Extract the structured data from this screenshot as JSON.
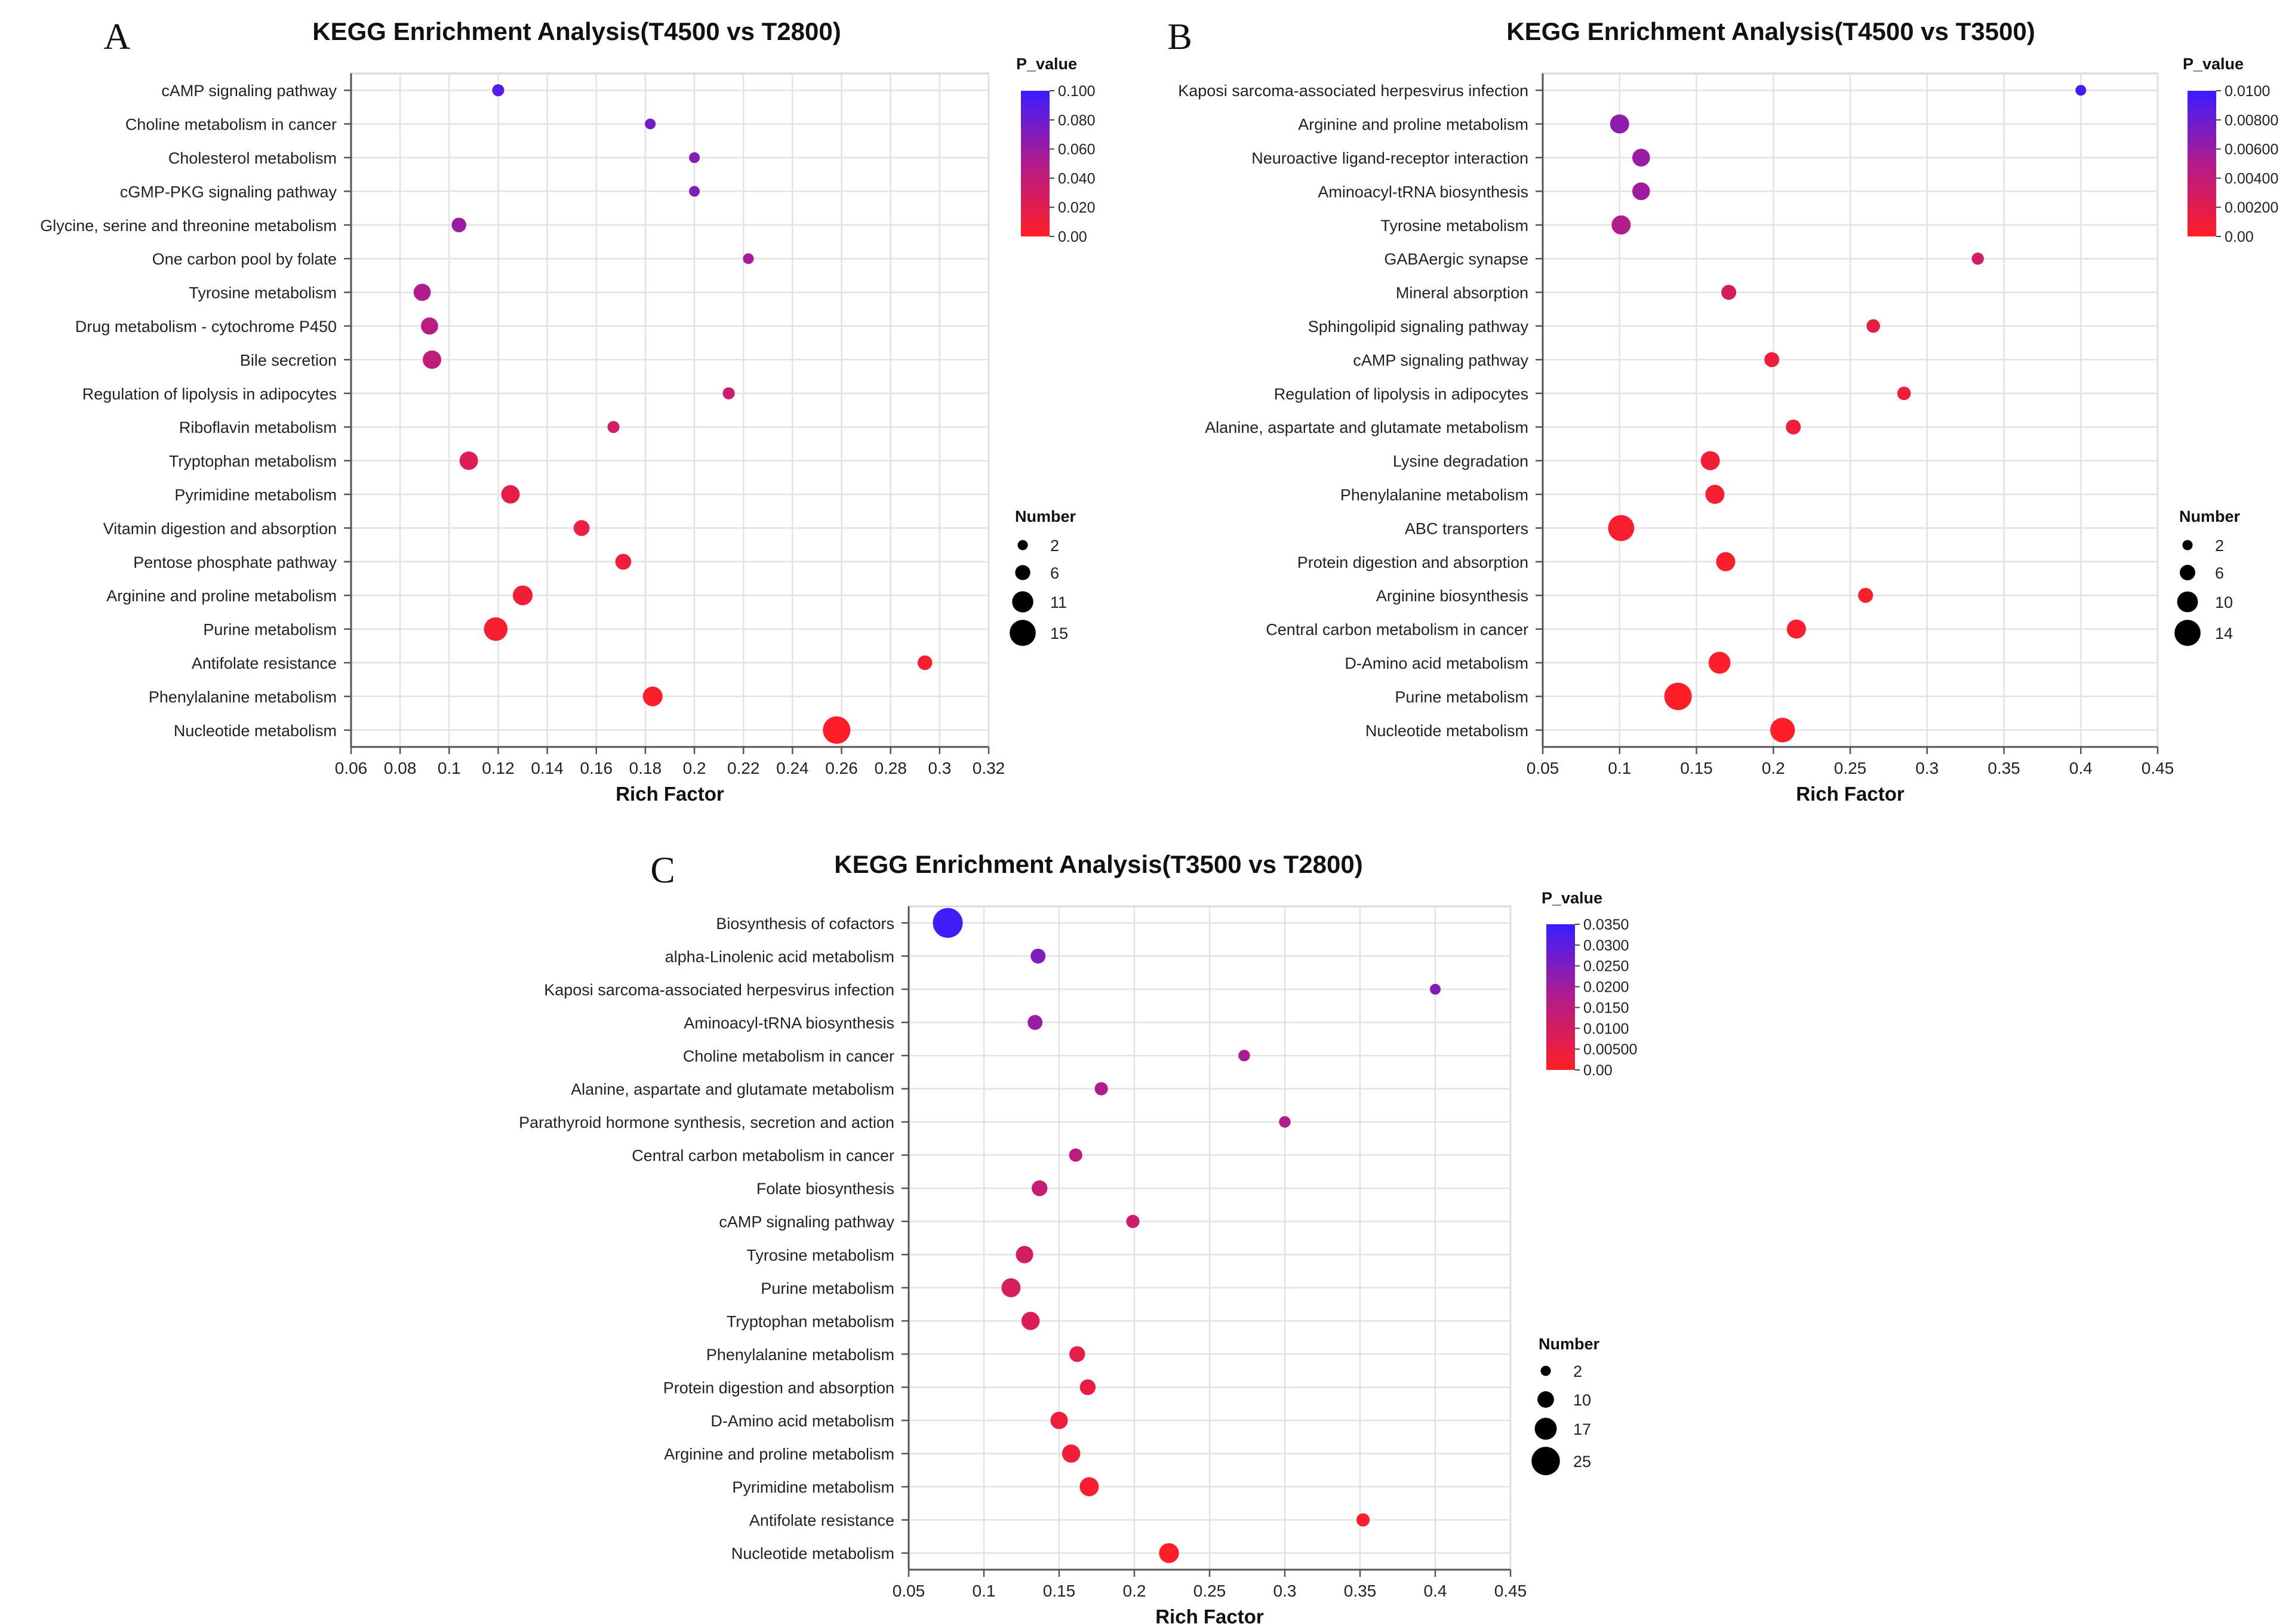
{
  "chart_data": [
    {
      "type": "scatter",
      "panel": "A",
      "title": "KEGG Enrichment Analysis(T4500 vs T2800)",
      "xlabel": "Rich Factor",
      "ylabel": "",
      "xlim": [
        0.06,
        0.32
      ],
      "xticks": [
        0.06,
        0.08,
        0.1,
        0.12,
        0.14,
        0.16,
        0.18,
        0.2,
        0.22,
        0.24,
        0.26,
        0.28,
        0.3,
        0.32
      ],
      "xtick_labels": [
        "0.06",
        "0.08",
        "0.1",
        "0.12",
        "0.14",
        "0.16",
        "0.18",
        "0.2",
        "0.22",
        "0.24",
        "0.26",
        "0.28",
        "0.3",
        "0.32"
      ],
      "grid": true,
      "color_legend": {
        "title": "P_value",
        "min": 0,
        "max": 0.1,
        "ticks": [
          "0.100",
          "0.080",
          "0.060",
          "0.040",
          "0.020",
          "0.00"
        ]
      },
      "size_legend": {
        "title": "Number",
        "values": [
          2,
          6,
          11,
          15
        ],
        "labels": [
          "2",
          "6",
          "11",
          "15"
        ]
      },
      "size_range": [
        2,
        15
      ],
      "points": [
        {
          "pathway": "cAMP signaling pathway",
          "rich_factor": 0.12,
          "number": 3,
          "p_value": 0.09
        },
        {
          "pathway": "Choline metabolism in cancer",
          "rich_factor": 0.182,
          "number": 2,
          "p_value": 0.075
        },
        {
          "pathway": "Cholesterol metabolism",
          "rich_factor": 0.2,
          "number": 2,
          "p_value": 0.07
        },
        {
          "pathway": "cGMP-PKG signaling pathway",
          "rich_factor": 0.2,
          "number": 2,
          "p_value": 0.07
        },
        {
          "pathway": "Glycine, serine and threonine metabolism",
          "rich_factor": 0.104,
          "number": 5,
          "p_value": 0.06
        },
        {
          "pathway": "One carbon pool by folate",
          "rich_factor": 0.222,
          "number": 2,
          "p_value": 0.055
        },
        {
          "pathway": "Tyrosine metabolism",
          "rich_factor": 0.089,
          "number": 7,
          "p_value": 0.05
        },
        {
          "pathway": "Drug metabolism - cytochrome P450",
          "rich_factor": 0.092,
          "number": 7,
          "p_value": 0.045
        },
        {
          "pathway": "Bile secretion",
          "rich_factor": 0.093,
          "number": 8,
          "p_value": 0.04
        },
        {
          "pathway": "Regulation of lipolysis in adipocytes",
          "rich_factor": 0.214,
          "number": 3,
          "p_value": 0.035
        },
        {
          "pathway": "Riboflavin metabolism",
          "rich_factor": 0.167,
          "number": 3,
          "p_value": 0.03
        },
        {
          "pathway": "Tryptophan metabolism",
          "rich_factor": 0.108,
          "number": 8,
          "p_value": 0.022
        },
        {
          "pathway": "Pyrimidine metabolism",
          "rich_factor": 0.125,
          "number": 8,
          "p_value": 0.015
        },
        {
          "pathway": "Vitamin digestion and absorption",
          "rich_factor": 0.154,
          "number": 6,
          "p_value": 0.012
        },
        {
          "pathway": "Pentose phosphate pathway",
          "rich_factor": 0.171,
          "number": 6,
          "p_value": 0.01
        },
        {
          "pathway": "Arginine and proline metabolism",
          "rich_factor": 0.13,
          "number": 9,
          "p_value": 0.008
        },
        {
          "pathway": "Purine metabolism",
          "rich_factor": 0.119,
          "number": 12,
          "p_value": 0.005
        },
        {
          "pathway": "Antifolate resistance",
          "rich_factor": 0.294,
          "number": 5,
          "p_value": 0.004
        },
        {
          "pathway": "Phenylalanine metabolism",
          "rich_factor": 0.183,
          "number": 9,
          "p_value": 0.002
        },
        {
          "pathway": "Nucleotide metabolism",
          "rich_factor": 0.258,
          "number": 15,
          "p_value": 0.0005
        }
      ]
    },
    {
      "type": "scatter",
      "panel": "B",
      "title": "KEGG Enrichment Analysis(T4500 vs T3500)",
      "xlabel": "Rich Factor",
      "ylabel": "",
      "xlim": [
        0.05,
        0.45
      ],
      "xticks": [
        0.05,
        0.1,
        0.15,
        0.2,
        0.25,
        0.3,
        0.35,
        0.4,
        0.45
      ],
      "xtick_labels": [
        "0.05",
        "0.1",
        "0.15",
        "0.2",
        "0.25",
        "0.3",
        "0.35",
        "0.4",
        "0.45"
      ],
      "grid": true,
      "color_legend": {
        "title": "P_value",
        "min": 0,
        "max": 0.01,
        "ticks": [
          "0.0100",
          "0.00800",
          "0.00600",
          "0.00400",
          "0.00200",
          "0.00"
        ]
      },
      "size_legend": {
        "title": "Number",
        "values": [
          2,
          6,
          10,
          14
        ],
        "labels": [
          "2",
          "6",
          "10",
          "14"
        ]
      },
      "size_range": [
        2,
        14
      ],
      "points": [
        {
          "pathway": "Kaposi sarcoma-associated herpesvirus infection",
          "rich_factor": 0.4,
          "number": 2,
          "p_value": 0.0095
        },
        {
          "pathway": "Arginine and proline metabolism",
          "rich_factor": 0.1,
          "number": 8,
          "p_value": 0.0065
        },
        {
          "pathway": "Neuroactive ligand-receptor interaction",
          "rich_factor": 0.114,
          "number": 7,
          "p_value": 0.006
        },
        {
          "pathway": "Aminoacyl-tRNA biosynthesis",
          "rich_factor": 0.114,
          "number": 7,
          "p_value": 0.0058
        },
        {
          "pathway": "Tyrosine metabolism",
          "rich_factor": 0.101,
          "number": 8,
          "p_value": 0.005
        },
        {
          "pathway": "GABAergic synapse",
          "rich_factor": 0.333,
          "number": 3,
          "p_value": 0.003
        },
        {
          "pathway": "Mineral absorption",
          "rich_factor": 0.171,
          "number": 5,
          "p_value": 0.0028
        },
        {
          "pathway": "Sphingolipid signaling pathway",
          "rich_factor": 0.265,
          "number": 4,
          "p_value": 0.0015
        },
        {
          "pathway": "cAMP signaling pathway",
          "rich_factor": 0.199,
          "number": 5,
          "p_value": 0.0012
        },
        {
          "pathway": "Regulation of lipolysis in adipocytes",
          "rich_factor": 0.285,
          "number": 4,
          "p_value": 0.0012
        },
        {
          "pathway": "Alanine, aspartate and glutamate metabolism",
          "rich_factor": 0.213,
          "number": 5,
          "p_value": 0.001
        },
        {
          "pathway": "Lysine degradation",
          "rich_factor": 0.159,
          "number": 8,
          "p_value": 0.0008
        },
        {
          "pathway": "Phenylalanine metabolism",
          "rich_factor": 0.162,
          "number": 8,
          "p_value": 0.0006
        },
        {
          "pathway": "ABC transporters",
          "rich_factor": 0.101,
          "number": 13,
          "p_value": 0.0005
        },
        {
          "pathway": "Protein digestion and absorption",
          "rich_factor": 0.169,
          "number": 8,
          "p_value": 0.0004
        },
        {
          "pathway": "Arginine biosynthesis",
          "rich_factor": 0.26,
          "number": 5,
          "p_value": 0.0003
        },
        {
          "pathway": "Central carbon metabolism in cancer",
          "rich_factor": 0.215,
          "number": 8,
          "p_value": 0.0002
        },
        {
          "pathway": "D-Amino acid metabolism",
          "rich_factor": 0.165,
          "number": 10,
          "p_value": 0.00015
        },
        {
          "pathway": "Purine metabolism",
          "rich_factor": 0.138,
          "number": 14,
          "p_value": 0.0001
        },
        {
          "pathway": "Nucleotide metabolism",
          "rich_factor": 0.206,
          "number": 12,
          "p_value": 5e-05
        }
      ]
    },
    {
      "type": "scatter",
      "panel": "C",
      "title": "KEGG Enrichment Analysis(T3500 vs T2800)",
      "xlabel": "Rich Factor",
      "ylabel": "",
      "xlim": [
        0.05,
        0.45
      ],
      "xticks": [
        0.05,
        0.1,
        0.15,
        0.2,
        0.25,
        0.3,
        0.35,
        0.4,
        0.45
      ],
      "xtick_labels": [
        "0.05",
        "0.1",
        "0.15",
        "0.2",
        "0.25",
        "0.3",
        "0.35",
        "0.4",
        "0.45"
      ],
      "grid": true,
      "color_legend": {
        "title": "P_value",
        "min": 0,
        "max": 0.035,
        "ticks": [
          "0.0350",
          "0.0300",
          "0.0250",
          "0.0200",
          "0.0150",
          "0.0100",
          "0.00500",
          "0.00"
        ]
      },
      "size_legend": {
        "title": "Number",
        "values": [
          2,
          10,
          17,
          25
        ],
        "labels": [
          "2",
          "10",
          "17",
          "25"
        ]
      },
      "size_range": [
        2,
        25
      ],
      "points": [
        {
          "pathway": "Biosynthesis of cofactors",
          "rich_factor": 0.076,
          "number": 25,
          "p_value": 0.034
        },
        {
          "pathway": "alpha-Linolenic acid metabolism",
          "rich_factor": 0.136,
          "number": 7,
          "p_value": 0.025
        },
        {
          "pathway": "Kaposi sarcoma-associated herpesvirus infection",
          "rich_factor": 0.4,
          "number": 2,
          "p_value": 0.024
        },
        {
          "pathway": "Aminoacyl-tRNA biosynthesis",
          "rich_factor": 0.134,
          "number": 7,
          "p_value": 0.021
        },
        {
          "pathway": "Choline metabolism in cancer",
          "rich_factor": 0.273,
          "number": 3,
          "p_value": 0.019
        },
        {
          "pathway": "Alanine, aspartate and glutamate metabolism",
          "rich_factor": 0.178,
          "number": 5,
          "p_value": 0.018
        },
        {
          "pathway": "Parathyroid hormone synthesis, secretion and action",
          "rich_factor": 0.3,
          "number": 3,
          "p_value": 0.017
        },
        {
          "pathway": "Central carbon metabolism in cancer",
          "rich_factor": 0.161,
          "number": 5,
          "p_value": 0.015
        },
        {
          "pathway": "Folate biosynthesis",
          "rich_factor": 0.137,
          "number": 8,
          "p_value": 0.013
        },
        {
          "pathway": "cAMP signaling pathway",
          "rich_factor": 0.199,
          "number": 5,
          "p_value": 0.012
        },
        {
          "pathway": "Tyrosine metabolism",
          "rich_factor": 0.127,
          "number": 10,
          "p_value": 0.01
        },
        {
          "pathway": "Purine metabolism",
          "rich_factor": 0.118,
          "number": 12,
          "p_value": 0.009
        },
        {
          "pathway": "Tryptophan metabolism",
          "rich_factor": 0.131,
          "number": 11,
          "p_value": 0.008
        },
        {
          "pathway": "Phenylalanine metabolism",
          "rich_factor": 0.162,
          "number": 8,
          "p_value": 0.006
        },
        {
          "pathway": "Protein digestion and absorption",
          "rich_factor": 0.169,
          "number": 8,
          "p_value": 0.005
        },
        {
          "pathway": "D-Amino acid metabolism",
          "rich_factor": 0.15,
          "number": 10,
          "p_value": 0.004
        },
        {
          "pathway": "Arginine and proline metabolism",
          "rich_factor": 0.158,
          "number": 11,
          "p_value": 0.003
        },
        {
          "pathway": "Pyrimidine metabolism",
          "rich_factor": 0.17,
          "number": 12,
          "p_value": 0.002
        },
        {
          "pathway": "Antifolate resistance",
          "rich_factor": 0.352,
          "number": 5,
          "p_value": 0.001
        },
        {
          "pathway": "Nucleotide metabolism",
          "rich_factor": 0.223,
          "number": 13,
          "p_value": 0.0005
        }
      ]
    }
  ]
}
